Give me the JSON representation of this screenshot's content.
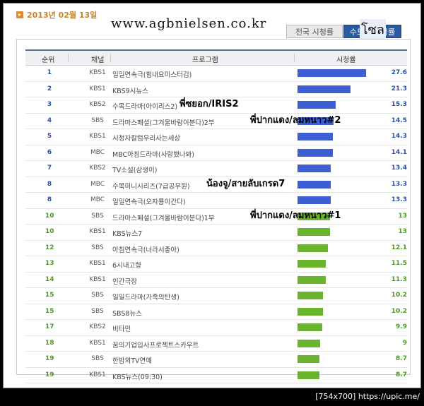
{
  "date": "2013년 02월 13일",
  "site_handwriting": "www.agbnielsen.co.kr",
  "tabs": {
    "national": "전국 시청률",
    "capital": "수도권 시청률",
    "handwriting": "โซล"
  },
  "columns": {
    "rank": "순위",
    "channel": "채널",
    "program": "프로그램",
    "rating": "시청률"
  },
  "colors": {
    "blue": "#3d5fd1",
    "green": "#6ab32c"
  },
  "max_rating": 27.6,
  "rows": [
    {
      "rank": "1",
      "channel": "KBS1",
      "program": "일일연속극(힘내요미스터김)",
      "rating": "27.6",
      "value": 27.6,
      "color": "blue",
      "note": ""
    },
    {
      "rank": "2",
      "channel": "KBS1",
      "program": "KBS9시뉴스",
      "rating": "21.3",
      "value": 21.3,
      "color": "blue",
      "note": ""
    },
    {
      "rank": "3",
      "channel": "KBS2",
      "program": "수목드라마(아이리스2)",
      "rating": "15.3",
      "value": 15.3,
      "color": "blue",
      "note": "พี่ซยอก/IRIS2"
    },
    {
      "rank": "4",
      "channel": "SBS",
      "program": "드라마스페셜(그겨울바람이분다)2부",
      "rating": "14.5",
      "value": 14.5,
      "color": "blue",
      "note": "พี่ปากแดง/ลมหนาว#2"
    },
    {
      "rank": "5",
      "channel": "KBS1",
      "program": "시청자칼럼우리사는세상",
      "rating": "14.3",
      "value": 14.3,
      "color": "blue",
      "note": ""
    },
    {
      "rank": "6",
      "channel": "MBC",
      "program": "MBC아침드라마(사랑했나봐)",
      "rating": "14.1",
      "value": 14.1,
      "color": "blue",
      "note": ""
    },
    {
      "rank": "7",
      "channel": "KBS2",
      "program": "TV소설(삼생이)",
      "rating": "13.4",
      "value": 13.4,
      "color": "blue",
      "note": ""
    },
    {
      "rank": "8",
      "channel": "MBC",
      "program": "수목미니시리즈(7급공무원)",
      "rating": "13.3",
      "value": 13.3,
      "color": "blue",
      "note": "น้องจู/สายลับเกรด7"
    },
    {
      "rank": "8",
      "channel": "MBC",
      "program": "일일연속극(오자룡이간다)",
      "rating": "13.3",
      "value": 13.3,
      "color": "blue",
      "note": ""
    },
    {
      "rank": "10",
      "channel": "SBS",
      "program": "드라마스페셜(그겨울바람이분다)1부",
      "rating": "13",
      "value": 13.0,
      "color": "green",
      "note": "พี่ปากแดง/ลมหนาว#1"
    },
    {
      "rank": "10",
      "channel": "KBS1",
      "program": "KBS뉴스7",
      "rating": "13",
      "value": 13.0,
      "color": "green",
      "note": ""
    },
    {
      "rank": "12",
      "channel": "SBS",
      "program": "아침연속극(너라서좋아)",
      "rating": "12.1",
      "value": 12.1,
      "color": "green",
      "note": ""
    },
    {
      "rank": "13",
      "channel": "KBS1",
      "program": "6시내고향",
      "rating": "11.5",
      "value": 11.5,
      "color": "green",
      "note": ""
    },
    {
      "rank": "14",
      "channel": "KBS1",
      "program": "인간극장",
      "rating": "11.3",
      "value": 11.3,
      "color": "green",
      "note": ""
    },
    {
      "rank": "15",
      "channel": "SBS",
      "program": "일일드라마(가족의탄생)",
      "rating": "10.2",
      "value": 10.2,
      "color": "green",
      "note": ""
    },
    {
      "rank": "15",
      "channel": "SBS",
      "program": "SBS8뉴스",
      "rating": "10.2",
      "value": 10.2,
      "color": "green",
      "note": ""
    },
    {
      "rank": "17",
      "channel": "KBS2",
      "program": "비타민",
      "rating": "9.9",
      "value": 9.9,
      "color": "green",
      "note": ""
    },
    {
      "rank": "18",
      "channel": "KBS1",
      "program": "꿈의기업입사프로젝트스카우트",
      "rating": "9",
      "value": 9.0,
      "color": "green",
      "note": ""
    },
    {
      "rank": "19",
      "channel": "SBS",
      "program": "한밤의TV연예",
      "rating": "8.7",
      "value": 8.7,
      "color": "green",
      "note": ""
    },
    {
      "rank": "19",
      "channel": "KBS1",
      "program": "KBS뉴스(09:30)",
      "rating": "8.7",
      "value": 8.7,
      "color": "green",
      "note": ""
    }
  ],
  "footer": "[754x700] https://upic.me/"
}
